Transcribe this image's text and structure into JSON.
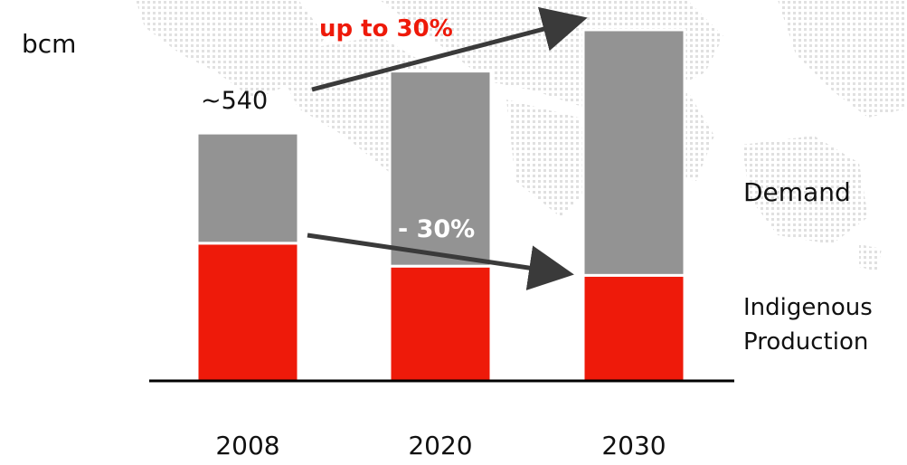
{
  "chart_data": {
    "type": "bar",
    "stacked": true,
    "ylabel": "bcm",
    "categories": [
      "2008",
      "2020",
      "2030"
    ],
    "series": [
      {
        "name": "Indigenous Production",
        "color": "#ee1a0a",
        "values": [
          300,
          250,
          230
        ]
      },
      {
        "name": "Demand",
        "color": "#939393",
        "values": [
          240,
          425,
          535
        ]
      }
    ],
    "legend_placement": "right",
    "ylim": [
      0,
      830
    ],
    "grid": false,
    "annotations": {
      "total_2008": "~540",
      "demand_growth": "up to 30%",
      "production_change": "- 30%"
    },
    "colors": {
      "accent_text": "#ee1a0a",
      "arrow": "#3a3a3a",
      "axis": "#000000"
    }
  }
}
